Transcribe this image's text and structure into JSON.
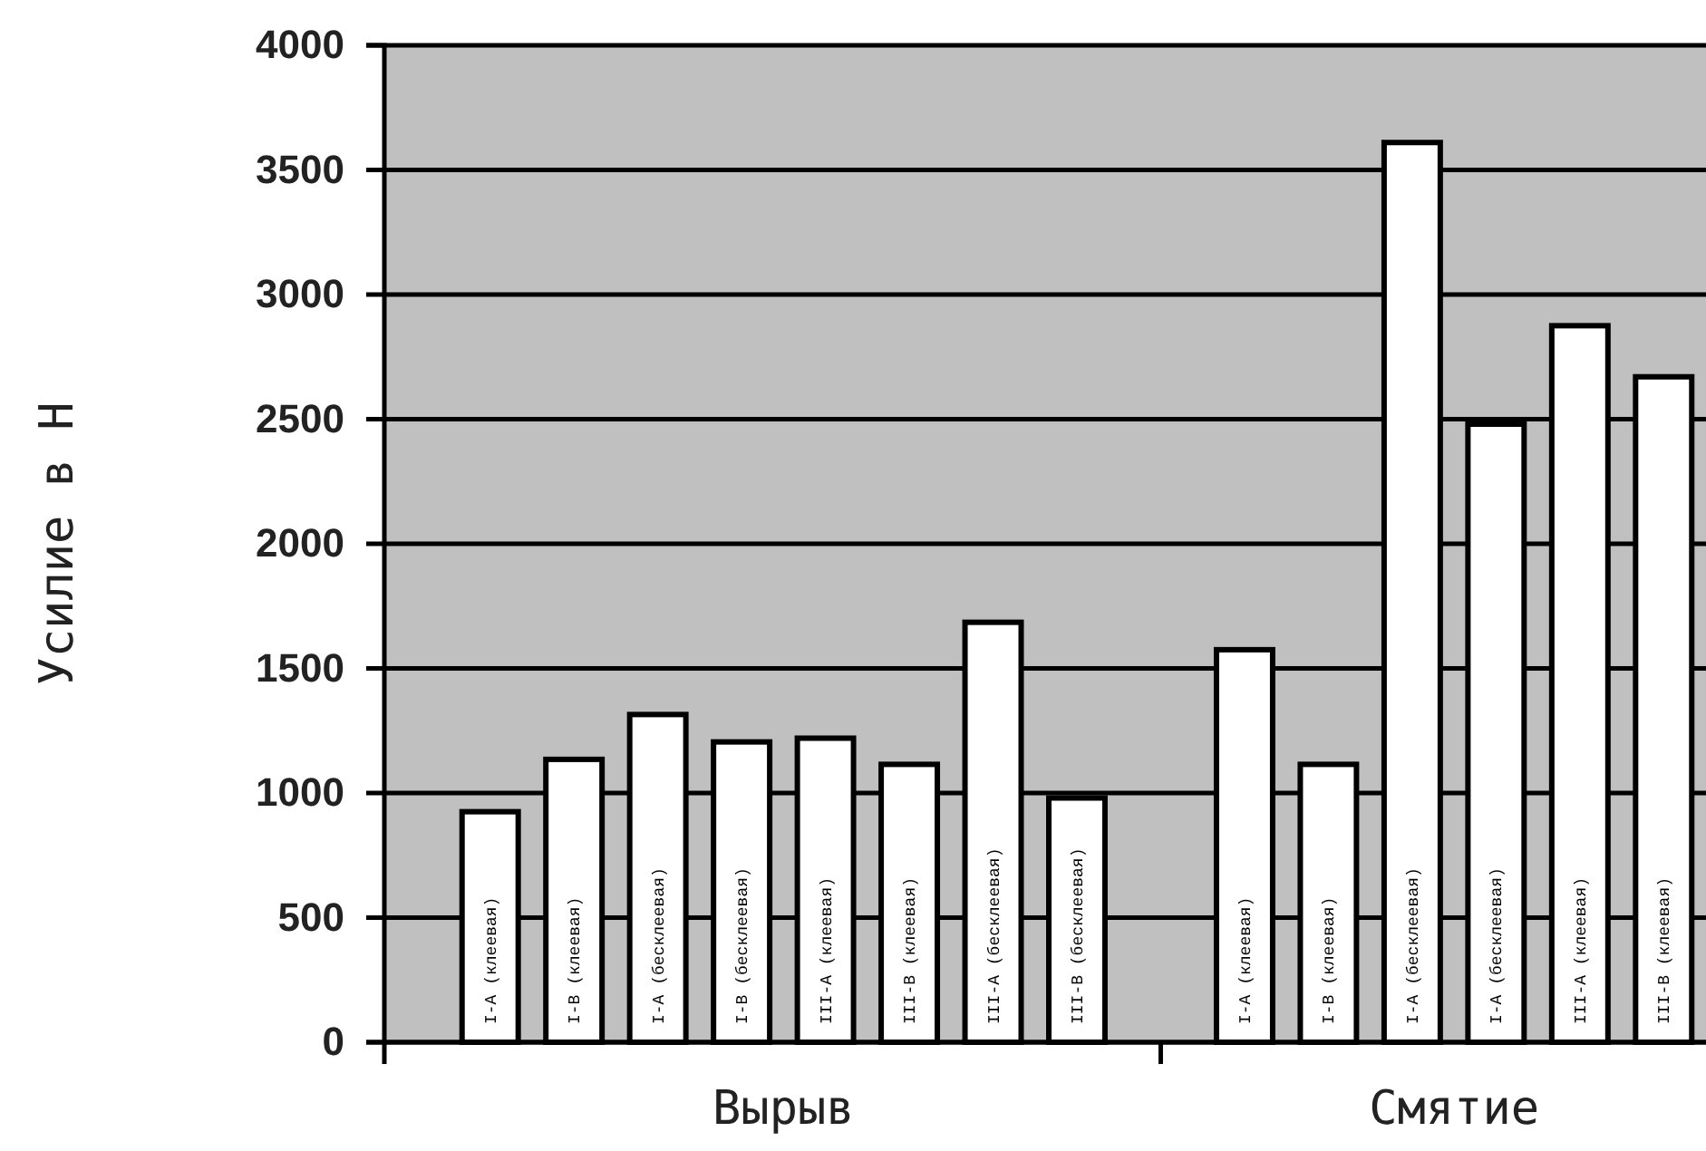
{
  "chart_data": {
    "type": "bar",
    "ylabel": "Усилие в Н",
    "categories": [
      "I-А (клеевая)",
      "I-В (клеевая)",
      "I-А (бесклеевая)",
      "I-В (бесклеевая)",
      "III-А (клеевая)",
      "III-В (клеевая)",
      "III-А (бесклеевая)",
      "III-В (бесклеевая)",
      null,
      "I-А (клеевая)",
      "I-В (клеевая)",
      "I-А (бесклеевая)",
      "I-А (бесклеевая)",
      "III-А (клеевая)",
      "III-В (клеевая)"
    ],
    "values": [
      925,
      1135,
      1315,
      1205,
      1220,
      1115,
      1685,
      980,
      null,
      1575,
      1115,
      3610,
      2480,
      2875,
      2670
    ],
    "color": "#ffffff",
    "annotations": [
      "Вырыв",
      "Смятие"
    ],
    "ylim": [
      0,
      4000
    ],
    "yticks": [
      0,
      500,
      1000,
      1500,
      2000,
      2500,
      3000,
      3500,
      4000
    ],
    "grid": "y"
  }
}
